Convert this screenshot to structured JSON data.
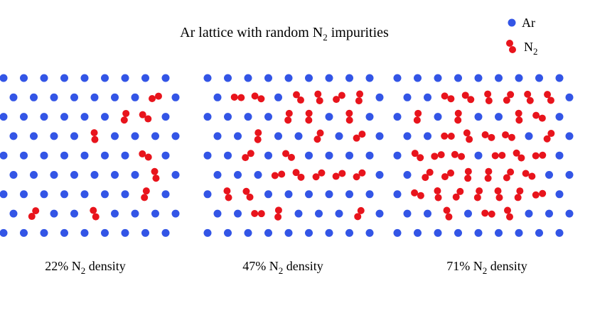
{
  "title": {
    "before": "Ar lattice with random N",
    "sub": "2",
    "after": " impurities"
  },
  "legend": [
    {
      "text": "Ar"
    },
    {
      "before": "N",
      "sub": "2"
    }
  ],
  "panels": [
    {
      "before": "22% N",
      "sub": "2",
      "after": " density"
    },
    {
      "before": "47% N",
      "sub": "2",
      "after": " density"
    },
    {
      "before": "71% N",
      "sub": "2",
      "after": " density"
    }
  ]
}
